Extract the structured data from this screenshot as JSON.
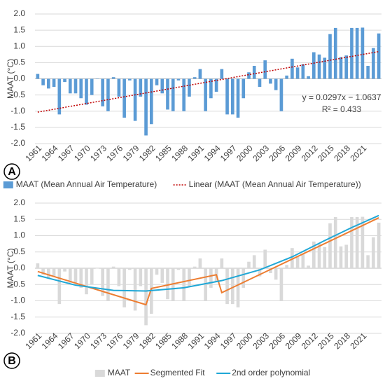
{
  "chart_data": [
    {
      "type": "bar",
      "panel_label": "A",
      "y_label": "MAAT (°C)",
      "categories": [
        "1961",
        null,
        null,
        "1964",
        null,
        null,
        "1967",
        null,
        null,
        "1970",
        null,
        null,
        "1973",
        null,
        null,
        "1976",
        null,
        null,
        "1979",
        null,
        null,
        "1982",
        null,
        null,
        "1985",
        null,
        null,
        "1988",
        null,
        null,
        "1991",
        null,
        null,
        "1994",
        null,
        null,
        "1997",
        null,
        null,
        "2000",
        null,
        null,
        "2003",
        null,
        null,
        "2006",
        null,
        null,
        "2009",
        null,
        null,
        "2012",
        null,
        null,
        "2015",
        null,
        null,
        "2018",
        null,
        null,
        "2021",
        null,
        null,
        null
      ],
      "series": [
        {
          "type": "bar",
          "name": "MAAT (Mean Annual Air Temperature)",
          "color": "#5b9bd5",
          "values": [
            0.15,
            -0.2,
            -0.3,
            -0.25,
            -1.1,
            -0.1,
            -0.45,
            -0.45,
            -0.6,
            -0.8,
            -0.5,
            0.0,
            -0.85,
            -1.0,
            0.05,
            -0.55,
            -1.2,
            -0.05,
            -1.3,
            -0.55,
            -1.75,
            -1.4,
            -0.2,
            -0.45,
            -0.95,
            -1.0,
            -0.05,
            -1.0,
            -0.55,
            0.05,
            0.3,
            -1.0,
            -0.6,
            -0.4,
            0.3,
            -1.1,
            -1.1,
            -1.2,
            -0.6,
            0.2,
            0.4,
            -0.25,
            0.57,
            -0.15,
            -0.35,
            -1.0,
            0.1,
            0.62,
            0.35,
            0.45,
            0.08,
            0.82,
            0.75,
            0.65,
            1.38,
            1.57,
            0.67,
            0.72,
            1.57,
            1.57,
            1.58,
            0.4,
            0.95,
            1.4
          ]
        },
        {
          "type": "line",
          "style": "dotted",
          "name": "Linear (MAAT (Mean Annual Air Temperature))",
          "color": "#c00000",
          "x": [
            1961,
            2024
          ],
          "values": [
            -1.03,
            0.84
          ]
        }
      ],
      "annotations": [
        "y = 0.0297x − 1.0637",
        "R² = 0.433"
      ],
      "ylim": [
        -2,
        2
      ],
      "yticks": [
        {
          "value": -2,
          "label": "-2.0"
        },
        -1.5,
        {
          "value": -1,
          "label": "-1.0"
        },
        -0.5,
        {
          "value": 0,
          "label": "0.0"
        },
        0.5,
        {
          "value": 1,
          "label": "1.0"
        },
        1.5,
        {
          "value": 2,
          "label": "2.0"
        }
      ],
      "grid": true
    },
    {
      "type": "bar",
      "panel_label": "B",
      "y_label": "MAAT (°C)",
      "categories": [
        "1961",
        null,
        null,
        "1964",
        null,
        null,
        "1967",
        null,
        null,
        "1970",
        null,
        null,
        "1973",
        null,
        null,
        "1976",
        null,
        null,
        "1979",
        null,
        null,
        "1982",
        null,
        null,
        "1985",
        null,
        null,
        "1988",
        null,
        null,
        "1991",
        null,
        null,
        "1994",
        null,
        null,
        "1997",
        null,
        null,
        "2000",
        null,
        null,
        "2003",
        null,
        null,
        "2006",
        null,
        null,
        "2009",
        null,
        null,
        "2012",
        null,
        null,
        "2015",
        null,
        null,
        "2018",
        null,
        null,
        "2021",
        null,
        null,
        null
      ],
      "series": [
        {
          "type": "bar",
          "name": "MAAT",
          "color": "#d9d9d9",
          "values": [
            0.15,
            -0.2,
            -0.3,
            -0.25,
            -1.1,
            -0.1,
            -0.45,
            -0.45,
            -0.6,
            -0.8,
            -0.5,
            0.0,
            -0.85,
            -1.0,
            0.05,
            -0.55,
            -1.2,
            -0.05,
            -1.3,
            -0.55,
            -1.75,
            -1.4,
            -0.2,
            -0.45,
            -0.95,
            -1.0,
            -0.05,
            -1.0,
            -0.55,
            0.05,
            0.3,
            -1.0,
            -0.6,
            -0.4,
            0.3,
            -1.1,
            -1.1,
            -1.2,
            -0.6,
            0.2,
            0.4,
            -0.25,
            0.57,
            -0.15,
            -0.35,
            -1.0,
            0.1,
            0.62,
            0.35,
            0.45,
            0.08,
            0.82,
            0.75,
            0.65,
            1.38,
            1.57,
            0.67,
            0.72,
            1.57,
            1.57,
            1.58,
            0.4,
            0.95,
            1.4
          ]
        },
        {
          "type": "line",
          "style": "solid",
          "name": "Segmented Fit",
          "color": "#ed7d31",
          "x": [
            1961,
            1981,
            1982,
            1994,
            1995,
            2024
          ],
          "values": [
            -0.1,
            -1.12,
            -0.62,
            -0.2,
            -0.75,
            1.55
          ]
        },
        {
          "type": "line",
          "style": "solid",
          "name": "2nd order polynomial",
          "color": "#1fa7d6",
          "x": [
            1961,
            1968,
            1975,
            1981,
            1988,
            1995,
            2002,
            2008,
            2014,
            2019,
            2024
          ],
          "values": [
            -0.22,
            -0.52,
            -0.68,
            -0.7,
            -0.6,
            -0.38,
            -0.05,
            0.35,
            0.85,
            1.25,
            1.62
          ]
        }
      ],
      "ylim": [
        -2,
        2
      ],
      "yticks": [
        {
          "value": -2,
          "label": "-2.0"
        },
        -1.5,
        {
          "value": -1,
          "label": "-1.0"
        },
        -0.5,
        {
          "value": 0,
          "label": "0.0"
        },
        0.5,
        {
          "value": 1,
          "label": "1.0"
        },
        1.5,
        {
          "value": 2,
          "label": "2.0"
        }
      ],
      "grid": true
    }
  ]
}
